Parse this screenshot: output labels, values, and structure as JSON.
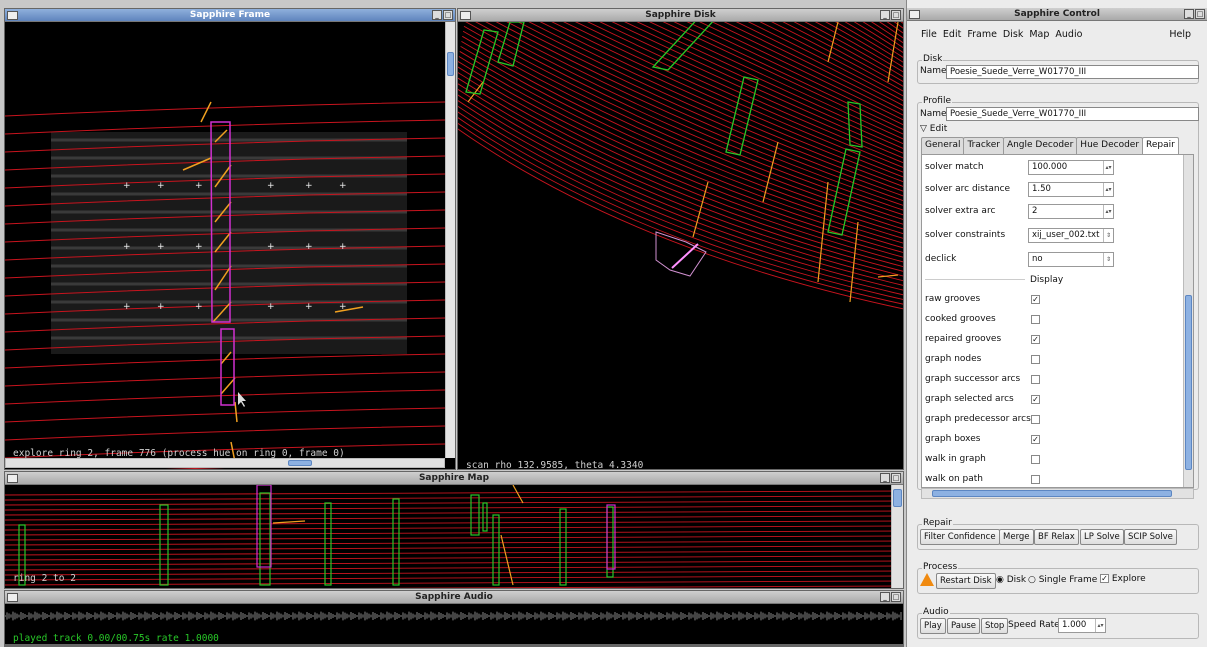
{
  "windows": {
    "frame": {
      "title": "Sapphire Frame",
      "status": "explore ring 2, frame 776 (process hue on ring 0, frame 0)"
    },
    "disk": {
      "title": "Sapphire Disk",
      "status": "scan rho 132.9585, theta 4.3340"
    },
    "map": {
      "title": "Sapphire Map",
      "status": "ring 2 to 2"
    },
    "audio": {
      "title": "Sapphire Audio",
      "status": "played track 0.00/00.75s rate 1.0000"
    },
    "control": {
      "title": "Sapphire Control"
    }
  },
  "menu": {
    "items": [
      "File",
      "Edit",
      "Frame",
      "Disk",
      "Map",
      "Audio"
    ],
    "help": "Help"
  },
  "disk_group": {
    "label": "Disk",
    "name_label": "Name",
    "name_value": "Poesie_Suede_Verre_W01770_III"
  },
  "profile_group": {
    "label": "Profile",
    "name_label": "Name",
    "name_value": "Poesie_Suede_Verre_W01770_III",
    "edit_label": "Edit"
  },
  "tabs": [
    "General",
    "Tracker",
    "Angle Decoder",
    "Hue Decoder",
    "Repair"
  ],
  "settings": [
    {
      "label": "solver match",
      "value": "100.000"
    },
    {
      "label": "solver arc distance",
      "value": "1.50"
    },
    {
      "label": "solver extra arc",
      "value": "2"
    },
    {
      "label": "solver constraints",
      "value": "xij_user_002.txt"
    },
    {
      "label": "declick",
      "value": "no"
    }
  ],
  "display_header": "Display",
  "display_options": [
    {
      "label": "raw grooves",
      "checked": "✓"
    },
    {
      "label": "cooked grooves",
      "checked": ""
    },
    {
      "label": "repaired grooves",
      "checked": "✓"
    },
    {
      "label": "graph nodes",
      "checked": ""
    },
    {
      "label": "graph successor arcs",
      "checked": ""
    },
    {
      "label": "graph selected arcs",
      "checked": "✓"
    },
    {
      "label": "graph predecessor arcs",
      "checked": ""
    },
    {
      "label": "graph boxes",
      "checked": "✓"
    },
    {
      "label": "walk in graph",
      "checked": ""
    },
    {
      "label": "walk on path",
      "checked": ""
    }
  ],
  "repair": {
    "label": "Repair",
    "buttons": [
      "Filter Confidence",
      "Merge",
      "BF Relax",
      "LP Solve",
      "SCIP Solve"
    ]
  },
  "process": {
    "label": "Process",
    "restart": "Restart Disk",
    "disk": "Disk",
    "single": "Single Frame",
    "explore": "Explore",
    "explore_checked": "✓"
  },
  "audio": {
    "label": "Audio",
    "play": "Play",
    "pause": "Pause",
    "stop": "Stop",
    "rate_label": "Speed Rate",
    "rate_value": "1.000"
  },
  "colors": {
    "groove": "#c8141e",
    "tracker": "#f0a020",
    "box_green": "#28c828",
    "box_magenta": "#d030d0",
    "title_active": "#6f93c8"
  }
}
